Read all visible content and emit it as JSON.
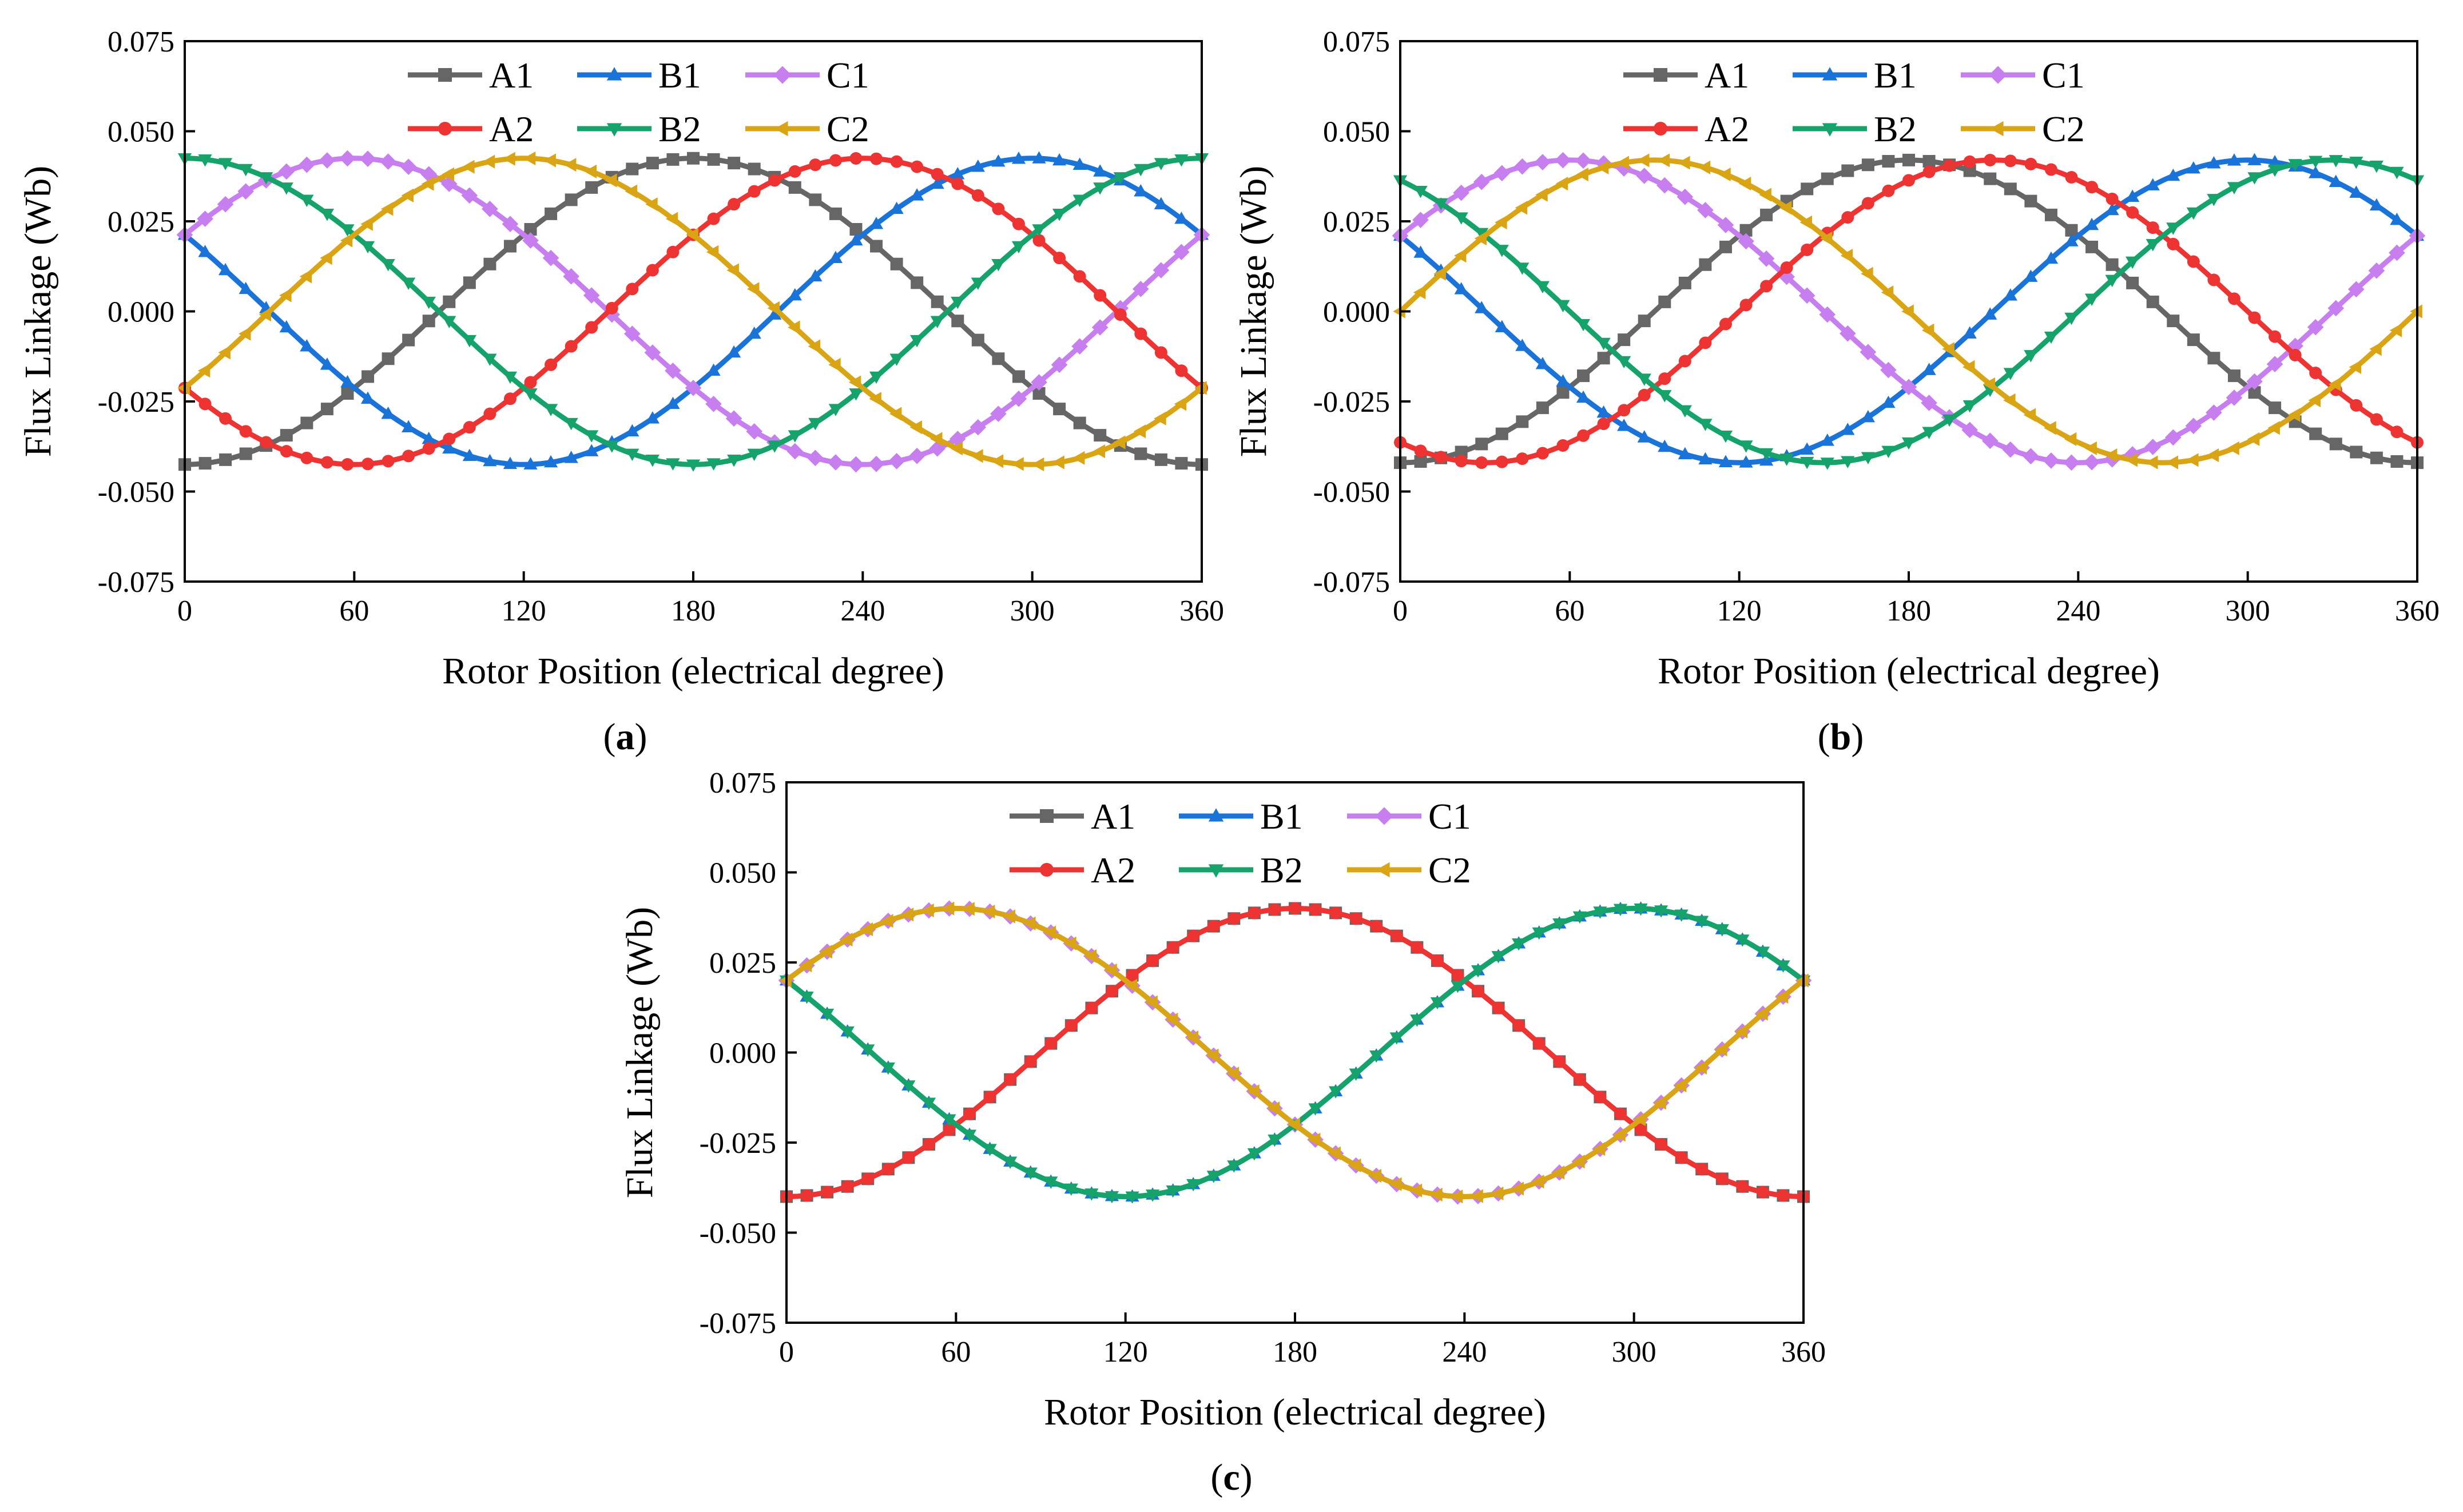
{
  "figure": {
    "captions": [
      {
        "open": "(",
        "letter": "a",
        "close": ")"
      },
      {
        "open": "(",
        "letter": "b",
        "close": ")"
      },
      {
        "open": "(",
        "letter": "c",
        "close": ")"
      }
    ]
  },
  "chart_data": [
    {
      "type": "line",
      "title": "",
      "xlabel": "Rotor Position (electrical degree)",
      "ylabel": "Flux Linkage (Wb)",
      "xlim": [
        0,
        360
      ],
      "ylim": [
        -0.075,
        0.075
      ],
      "xticks": [
        "0",
        "60",
        "120",
        "180",
        "240",
        "300",
        "360"
      ],
      "yticks": [
        "-0.075",
        "-0.050",
        "-0.025",
        "0.000",
        "0.025",
        "0.050",
        "0.075"
      ],
      "legend_position": "top",
      "series": [
        {
          "name": "A1",
          "color": "#666666",
          "marker": "square",
          "amplitude": 0.0425,
          "peak_deg": 180
        },
        {
          "name": "B1",
          "color": "#1a73d9",
          "marker": "triangle-up",
          "amplitude": 0.0425,
          "peak_deg": 300
        },
        {
          "name": "C1",
          "color": "#c77ff0",
          "marker": "diamond",
          "amplitude": 0.0425,
          "peak_deg": 60
        },
        {
          "name": "A2",
          "color": "#ee3333",
          "marker": "circle",
          "amplitude": 0.0425,
          "peak_deg": 240
        },
        {
          "name": "B2",
          "color": "#16a36b",
          "marker": "triangle-down",
          "amplitude": 0.0425,
          "peak_deg": 0
        },
        {
          "name": "C2",
          "color": "#d9a514",
          "marker": "triangle-left",
          "amplitude": 0.0425,
          "peak_deg": 120
        }
      ]
    },
    {
      "type": "line",
      "title": "",
      "xlabel": "Rotor Position (electrical degree)",
      "ylabel": "Flux Linkage (Wb)",
      "xlim": [
        0,
        360
      ],
      "ylim": [
        -0.075,
        0.075
      ],
      "xticks": [
        "0",
        "60",
        "120",
        "180",
        "240",
        "300",
        "360"
      ],
      "yticks": [
        "-0.075",
        "-0.050",
        "-0.025",
        "0.000",
        "0.025",
        "0.050",
        "0.075"
      ],
      "legend_position": "top",
      "series": [
        {
          "name": "A1",
          "color": "#666666",
          "marker": "square",
          "amplitude": 0.042,
          "peak_deg": 180
        },
        {
          "name": "B1",
          "color": "#1a73d9",
          "marker": "triangle-up",
          "amplitude": 0.042,
          "peak_deg": 300
        },
        {
          "name": "C1",
          "color": "#c77ff0",
          "marker": "diamond",
          "amplitude": 0.042,
          "peak_deg": 60
        },
        {
          "name": "A2",
          "color": "#ee3333",
          "marker": "circle",
          "amplitude": 0.042,
          "peak_deg": 210
        },
        {
          "name": "B2",
          "color": "#16a36b",
          "marker": "triangle-down",
          "amplitude": 0.042,
          "peak_deg": 330
        },
        {
          "name": "C2",
          "color": "#d9a514",
          "marker": "triangle-left",
          "amplitude": 0.042,
          "peak_deg": 90
        }
      ]
    },
    {
      "type": "line",
      "title": "",
      "xlabel": "Rotor Position (electrical degree)",
      "ylabel": "Flux Linkage (Wb)",
      "xlim": [
        0,
        360
      ],
      "ylim": [
        -0.075,
        0.075
      ],
      "xticks": [
        "0",
        "60",
        "120",
        "180",
        "240",
        "300",
        "360"
      ],
      "yticks": [
        "-0.075",
        "-0.050",
        "-0.025",
        "0.000",
        "0.025",
        "0.050",
        "0.075"
      ],
      "legend_position": "top",
      "series": [
        {
          "name": "A1",
          "color": "#666666",
          "marker": "square",
          "amplitude": 0.04,
          "peak_deg": 180
        },
        {
          "name": "B1",
          "color": "#1a73d9",
          "marker": "triangle-up",
          "amplitude": 0.04,
          "peak_deg": 300
        },
        {
          "name": "C1",
          "color": "#c77ff0",
          "marker": "diamond",
          "amplitude": 0.04,
          "peak_deg": 60
        },
        {
          "name": "A2",
          "color": "#ee3333",
          "marker": "circle",
          "amplitude": 0.04,
          "peak_deg": 180
        },
        {
          "name": "B2",
          "color": "#16a36b",
          "marker": "triangle-down",
          "amplitude": 0.04,
          "peak_deg": 300
        },
        {
          "name": "C2",
          "color": "#d9a514",
          "marker": "triangle-left",
          "amplitude": 0.04,
          "peak_deg": 60
        }
      ]
    }
  ]
}
